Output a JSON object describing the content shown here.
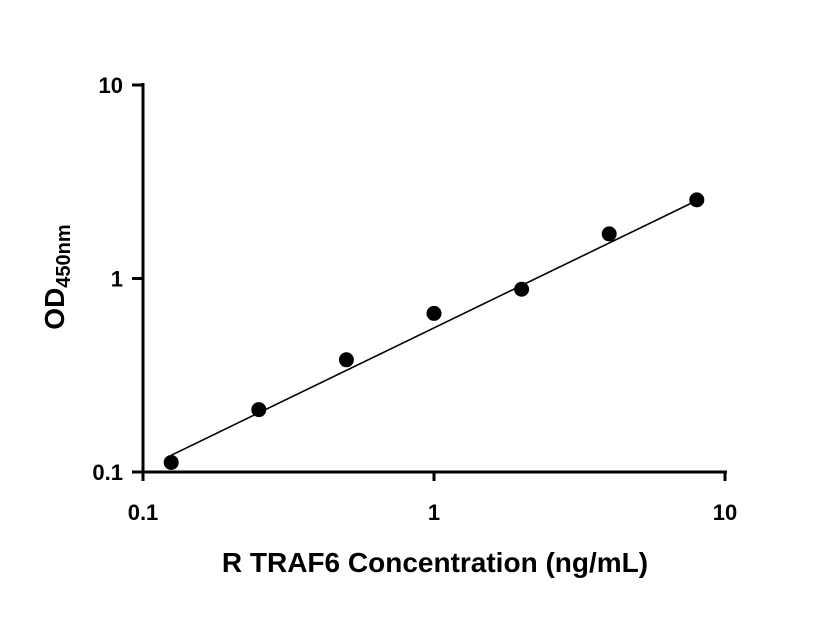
{
  "chart_data": {
    "type": "scatter",
    "x_scale": "log",
    "y_scale": "log",
    "xlabel": "R TRAF6 Concentration (ng/mL)",
    "ylabel_main": "OD",
    "ylabel_sub": "450nm",
    "xlim": [
      0.1,
      10
    ],
    "ylim": [
      0.1,
      10
    ],
    "x_ticks": [
      {
        "value": 0.1,
        "label": "0.1"
      },
      {
        "value": 1,
        "label": "1"
      },
      {
        "value": 10,
        "label": "10"
      }
    ],
    "y_ticks": [
      {
        "value": 0.1,
        "label": "0.1"
      },
      {
        "value": 1,
        "label": "1"
      },
      {
        "value": 10,
        "label": "10"
      }
    ],
    "grid": false,
    "series": [
      {
        "x": [
          0.125,
          0.25,
          0.5,
          1,
          2,
          4,
          8
        ],
        "y": [
          0.112,
          0.21,
          0.38,
          0.66,
          0.88,
          1.7,
          2.55
        ]
      }
    ],
    "fit_line": {
      "x": [
        0.125,
        8
      ],
      "y": [
        0.122,
        2.53
      ]
    }
  }
}
